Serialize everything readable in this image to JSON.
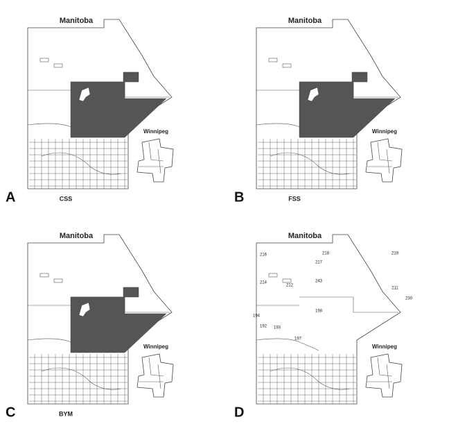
{
  "panels": [
    {
      "letter": "A",
      "title": "Manitoba",
      "inset": "Winnipeg",
      "caption": "CSS",
      "shaded": true
    },
    {
      "letter": "B",
      "title": "Manitoba",
      "inset": "Winnipeg",
      "caption": "FSS",
      "shaded": true
    },
    {
      "letter": "C",
      "title": "Manitoba",
      "inset": "Winnipeg",
      "caption": "BYM",
      "shaded": true
    },
    {
      "letter": "D",
      "title": "Manitoba",
      "inset": "Winnipeg",
      "shaded": false,
      "region_labels": [
        "216",
        "218",
        "217",
        "219",
        "214",
        "212",
        "243",
        "211",
        "230",
        "194",
        "192",
        "193",
        "197",
        "198"
      ]
    }
  ]
}
